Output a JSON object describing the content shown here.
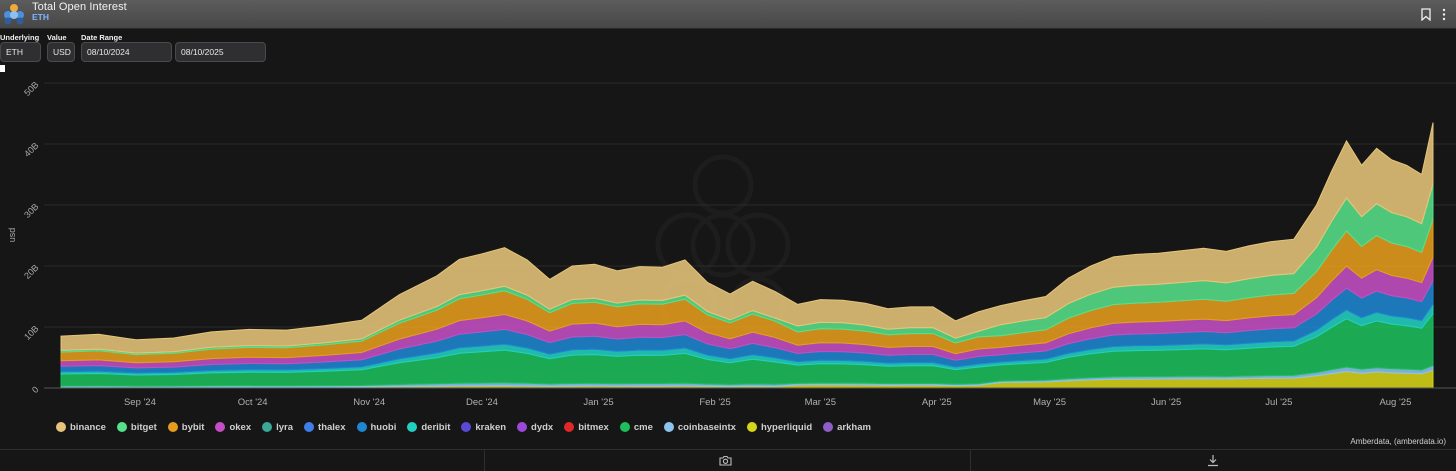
{
  "header": {
    "title": "Total Open Interest",
    "subtitle": "ETH"
  },
  "controls": {
    "underlying_label": "Underlying",
    "underlying_value": "ETH",
    "value_label": "Value",
    "value_value": "USD",
    "date_range_label": "Date Range",
    "date_start": "08/10/2024",
    "date_end": "08/10/2025"
  },
  "attribution": "Amberdata, (amberdata.io)",
  "icons": {
    "logo": "amberdata-logo-icon",
    "bookmark": "bookmark-icon",
    "more": "more-vertical-icon",
    "camera": "camera-icon",
    "download": "download-icon"
  },
  "chart_data": {
    "type": "area",
    "stacked": true,
    "title": "Total Open Interest",
    "ylabel": "usd",
    "xlabel": "",
    "ylim": [
      0,
      50
    ],
    "yunit": "B",
    "yticks": [
      {
        "value": 0,
        "label": "0"
      },
      {
        "value": 10,
        "label": "10B"
      },
      {
        "value": 20,
        "label": "20B"
      },
      {
        "value": 30,
        "label": "30B"
      },
      {
        "value": 40,
        "label": "40B"
      },
      {
        "value": 50,
        "label": "50B"
      }
    ],
    "x_start": "2024-08-10",
    "x_end": "2025-08-10",
    "xticks": [
      {
        "day": 21,
        "label": "Sep '24"
      },
      {
        "day": 51,
        "label": "Oct '24"
      },
      {
        "day": 82,
        "label": "Nov '24"
      },
      {
        "day": 112,
        "label": "Dec '24"
      },
      {
        "day": 143,
        "label": "Jan '25"
      },
      {
        "day": 174,
        "label": "Feb '25"
      },
      {
        "day": 202,
        "label": "Mar '25"
      },
      {
        "day": 233,
        "label": "Apr '25"
      },
      {
        "day": 263,
        "label": "May '25"
      },
      {
        "day": 294,
        "label": "Jun '25"
      },
      {
        "day": 324,
        "label": "Jul '25"
      },
      {
        "day": 355,
        "label": "Aug '25"
      }
    ],
    "days": [
      0,
      10,
      20,
      30,
      40,
      50,
      60,
      70,
      80,
      90,
      100,
      106,
      112,
      118,
      124,
      130,
      136,
      142,
      148,
      154,
      160,
      166,
      172,
      178,
      184,
      190,
      196,
      202,
      208,
      214,
      220,
      226,
      232,
      238,
      244,
      250,
      256,
      262,
      268,
      274,
      280,
      286,
      292,
      298,
      304,
      310,
      316,
      322,
      328,
      334,
      338,
      342,
      346,
      350,
      354,
      358,
      362,
      365
    ],
    "total": [
      8.5,
      8.8,
      7.9,
      8.2,
      9.2,
      9.6,
      9.5,
      10.2,
      11.1,
      15.3,
      18.4,
      21.1,
      22.0,
      23.0,
      21.0,
      17.8,
      20.0,
      20.3,
      19.2,
      19.9,
      19.8,
      21.0,
      17.3,
      15.4,
      17.5,
      15.8,
      13.7,
      14.5,
      14.4,
      13.9,
      13.0,
      13.3,
      13.3,
      11.0,
      12.5,
      13.5,
      14.3,
      15.0,
      18.0,
      20.0,
      21.5,
      21.9,
      22.1,
      22.5,
      22.9,
      22.4,
      23.3,
      24.0,
      24.4,
      30.0,
      35.5,
      40.5,
      36.5,
      39.3,
      37.4,
      36.5,
      35.0,
      43.5
    ],
    "series": [
      {
        "name": "binance",
        "color": "#e6c57a",
        "share": 0.26,
        "shape": "flat"
      },
      {
        "name": "bitget",
        "color": "#57e08a",
        "share": 0.12,
        "shape": "late"
      },
      {
        "name": "bybit",
        "color": "#e69d1e",
        "share": 0.16,
        "shape": "flat"
      },
      {
        "name": "okex",
        "color": "#c44fc4",
        "share": 0.1,
        "shape": "flat"
      },
      {
        "name": "lyra",
        "color": "#3aa895",
        "share": 0.0,
        "shape": "flat"
      },
      {
        "name": "thalex",
        "color": "#3f7ee8",
        "share": 0.0,
        "shape": "flat"
      },
      {
        "name": "huobi",
        "color": "#1f86d1",
        "share": 0.1,
        "shape": "flat"
      },
      {
        "name": "deribit",
        "color": "#22d0c0",
        "share": 0.04,
        "shape": "flat"
      },
      {
        "name": "kraken",
        "color": "#5a49d6",
        "share": 0.0,
        "shape": "flat"
      },
      {
        "name": "dydx",
        "color": "#9b49d6",
        "share": 0.0,
        "shape": "flat"
      },
      {
        "name": "bitmex",
        "color": "#e02828",
        "share": 0.0,
        "shape": "flat"
      },
      {
        "name": "cme",
        "color": "#1cbf5c",
        "share": 0.22,
        "shape": "flat"
      },
      {
        "name": "coinbaseintx",
        "color": "#8cc4ef",
        "share": 0.02,
        "shape": "flat"
      },
      {
        "name": "hyperliquid",
        "color": "#d8d418",
        "share": 0.06,
        "shape": "late"
      },
      {
        "name": "arkham",
        "color": "#8e5ec6",
        "share": 0.0,
        "shape": "flat"
      }
    ]
  }
}
